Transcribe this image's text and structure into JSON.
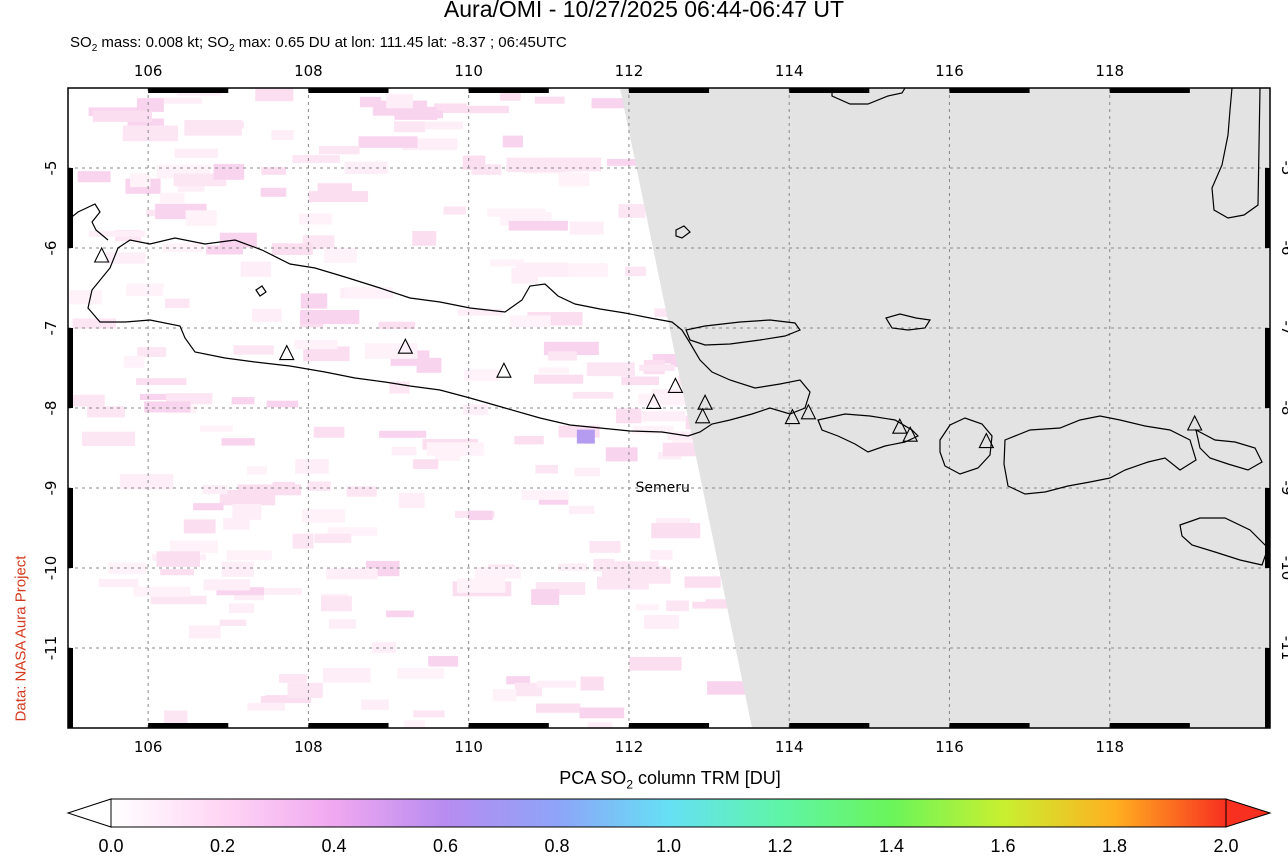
{
  "header": {
    "title": "Aura/OMI - 10/27/2025 06:44-06:47 UT",
    "subtitle_prefix": "SO",
    "subtitle_sub1": "2",
    "subtitle_mid": " mass: 0.008 kt; SO",
    "subtitle_sub2": "2",
    "subtitle_suffix": " max: 0.65 DU at lon: 111.45 lat: -8.37 ; 06:45UTC"
  },
  "credit": "Data: NASA Aura Project",
  "map": {
    "lon_range": [
      105,
      120
    ],
    "lat_range": [
      -12,
      -4
    ],
    "lon_ticks": [
      "106",
      "108",
      "110",
      "112",
      "114",
      "116",
      "118"
    ],
    "lat_ticks": [
      "-5",
      "-6",
      "-7",
      "-8",
      "-9",
      "-10",
      "-11"
    ],
    "volcano_label": "Semeru",
    "volcano_label_lonlat": [
      112.92,
      -8.11
    ],
    "no_data_fill": "#e3e3e3",
    "gridline": "dashed",
    "volcanoes": [
      [
        105.42,
        -6.1
      ],
      [
        107.73,
        -7.32
      ],
      [
        109.21,
        -7.24
      ],
      [
        110.44,
        -7.54
      ],
      [
        112.31,
        -7.93
      ],
      [
        112.58,
        -7.73
      ],
      [
        112.95,
        -7.94
      ],
      [
        112.92,
        -8.11
      ],
      [
        114.04,
        -8.12
      ],
      [
        114.24,
        -8.06
      ],
      [
        115.38,
        -8.24
      ],
      [
        115.51,
        -8.34
      ],
      [
        116.46,
        -8.42
      ],
      [
        119.06,
        -8.2
      ]
    ]
  },
  "colorbar": {
    "title_prefix": "PCA SO",
    "title_sub": "2",
    "title_suffix": " column TRM [DU]",
    "labels": [
      "0.0",
      "0.2",
      "0.4",
      "0.6",
      "0.8",
      "1.0",
      "1.2",
      "1.4",
      "1.6",
      "1.8",
      "2.0"
    ],
    "range": [
      0,
      2
    ],
    "colors": [
      "#ffffff",
      "#ffd6f5",
      "#f0a8f0",
      "#b78cf0",
      "#8ea4f8",
      "#66e0f5",
      "#5ff5a8",
      "#6af55a",
      "#c8f030",
      "#ffb020",
      "#f83020"
    ]
  },
  "chart_data": {
    "type": "heatmap",
    "title": "Aura/OMI - 10/27/2025 06:44-06:47 UT",
    "value_label": "PCA SO2 column TRM [DU]",
    "xlim": [
      105,
      120
    ],
    "ylim": [
      -12,
      -4
    ],
    "max_value": 0.65,
    "max_location": {
      "lon": 111.45,
      "lat": -8.37
    },
    "mass_kt": 0.008,
    "time_utc": "06:45UTC"
  }
}
